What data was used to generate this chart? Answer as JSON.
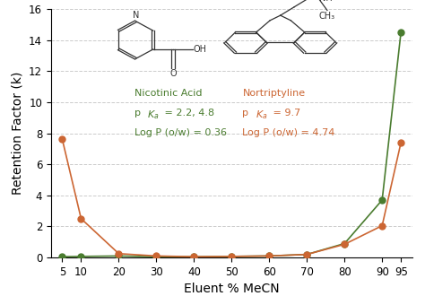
{
  "x": [
    5,
    10,
    20,
    30,
    40,
    50,
    60,
    70,
    80,
    90,
    95
  ],
  "nicotinic_acid_y": [
    0.05,
    0.07,
    0.1,
    0.05,
    0.05,
    0.07,
    0.1,
    0.2,
    0.9,
    3.7,
    14.5
  ],
  "nortriptyline_y": [
    7.6,
    2.5,
    0.25,
    0.1,
    0.05,
    0.07,
    0.1,
    0.2,
    0.85,
    2.05,
    7.4
  ],
  "green_color": "#4a7c2f",
  "orange_color": "#cc6633",
  "xlabel": "Eluent % MeCN",
  "ylabel": "Retention Factor (k)",
  "ylim": [
    0,
    16
  ],
  "xlim": [
    2,
    98
  ],
  "yticks": [
    0,
    2,
    4,
    6,
    8,
    10,
    12,
    14,
    16
  ],
  "xticks": [
    5,
    10,
    20,
    30,
    40,
    50,
    60,
    70,
    80,
    90,
    95
  ],
  "nicotinic_label": "Nicotinic Acid",
  "nicotinic_pka": "pK",
  "nicotinic_pka_sub": "a",
  "nicotinic_pka_val": " = 2.2, 4.8",
  "nicotinic_logp": "Log P (o/w) = 0.36",
  "nortriptyline_label": "Nortriptyline",
  "nortriptyline_pka": "pK",
  "nortriptyline_pka_sub": "a",
  "nortriptyline_pka_val": " = 9.7",
  "nortriptyline_logp": "Log P (o/w) = 4.74",
  "background_color": "#ffffff",
  "grid_color": "#cccccc",
  "struct_color": "#333333"
}
